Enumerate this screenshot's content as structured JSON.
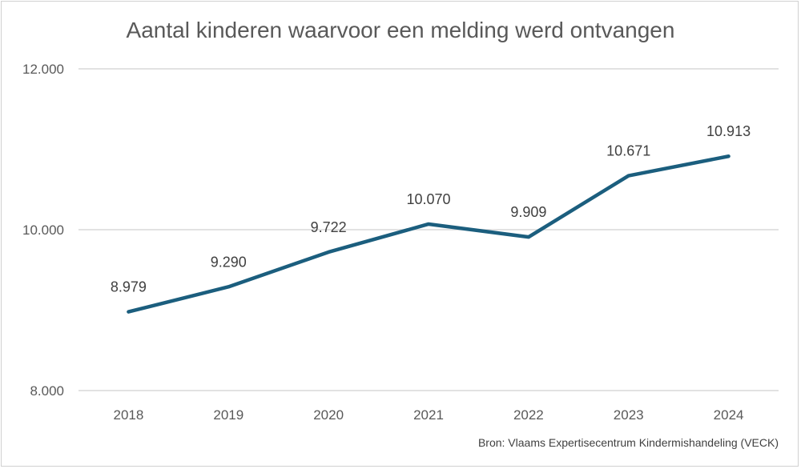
{
  "chart_data": {
    "type": "line",
    "title": "Aantal kinderen waarvoor een melding werd ontvangen",
    "xlabel": "",
    "ylabel": "",
    "categories": [
      "2018",
      "2019",
      "2020",
      "2021",
      "2022",
      "2023",
      "2024"
    ],
    "values": [
      8979,
      9290,
      9722,
      10070,
      9909,
      10671,
      10913
    ],
    "data_labels": [
      "8.979",
      "9.290",
      "9.722",
      "10.070",
      "9.909",
      "10.671",
      "10.913"
    ],
    "ylim": [
      8000,
      12000
    ],
    "yticks": [
      8000,
      10000,
      12000
    ],
    "ytick_labels": [
      "8.000",
      "10.000",
      "12.000"
    ],
    "grid": true,
    "line_color": "#1b5e7e",
    "source": "Bron: Vlaams Expertisecentrum Kindermishandeling (VECK)"
  }
}
